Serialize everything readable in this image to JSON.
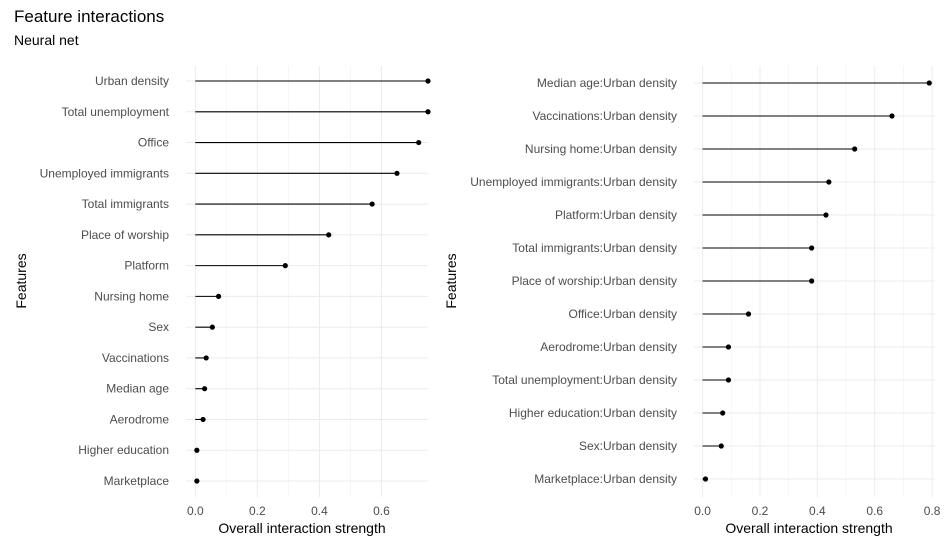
{
  "title": "Feature interactions",
  "subtitle": "Neural net",
  "chart_data": [
    {
      "type": "lollipop",
      "xlabel": "Overall interaction strength",
      "ylabel": "Features",
      "xlim": [
        -0.03,
        0.75
      ],
      "xticks": [
        0.0,
        0.2,
        0.4,
        0.6
      ],
      "tick_labels": [
        "0.0",
        "0.2",
        "0.4",
        "0.6"
      ],
      "grid": true,
      "categories": [
        "Urban density",
        "Total unemployment",
        "Office",
        "Unemployed immigrants",
        "Total immigrants",
        "Place of worship",
        "Platform",
        "Nursing home",
        "Sex",
        "Vaccinations",
        "Median age",
        "Aerodrome",
        "Higher education",
        "Marketplace"
      ],
      "values": [
        0.75,
        0.75,
        0.72,
        0.65,
        0.57,
        0.43,
        0.29,
        0.075,
        0.055,
        0.035,
        0.03,
        0.025,
        0.005,
        0.005
      ]
    },
    {
      "type": "lollipop",
      "xlabel": "Overall interaction strength",
      "ylabel": "Features",
      "xlim": [
        -0.03,
        0.81
      ],
      "xticks": [
        0.0,
        0.2,
        0.4,
        0.6,
        0.8
      ],
      "tick_labels": [
        "0.0",
        "0.2",
        "0.4",
        "0.6",
        "0.8"
      ],
      "grid": true,
      "categories": [
        "Median age:Urban density",
        "Vaccinations:Urban density",
        "Nursing home:Urban density",
        "Unemployed immigrants:Urban density",
        "Platform:Urban density",
        "Total immigrants:Urban density",
        "Place of worship:Urban density",
        "Office:Urban density",
        "Aerodrome:Urban density",
        "Total unemployment:Urban density",
        "Higher education:Urban density",
        "Sex:Urban density",
        "Marketplace:Urban density"
      ],
      "values": [
        0.79,
        0.66,
        0.53,
        0.44,
        0.43,
        0.38,
        0.38,
        0.16,
        0.09,
        0.09,
        0.07,
        0.065,
        0.01
      ]
    }
  ]
}
